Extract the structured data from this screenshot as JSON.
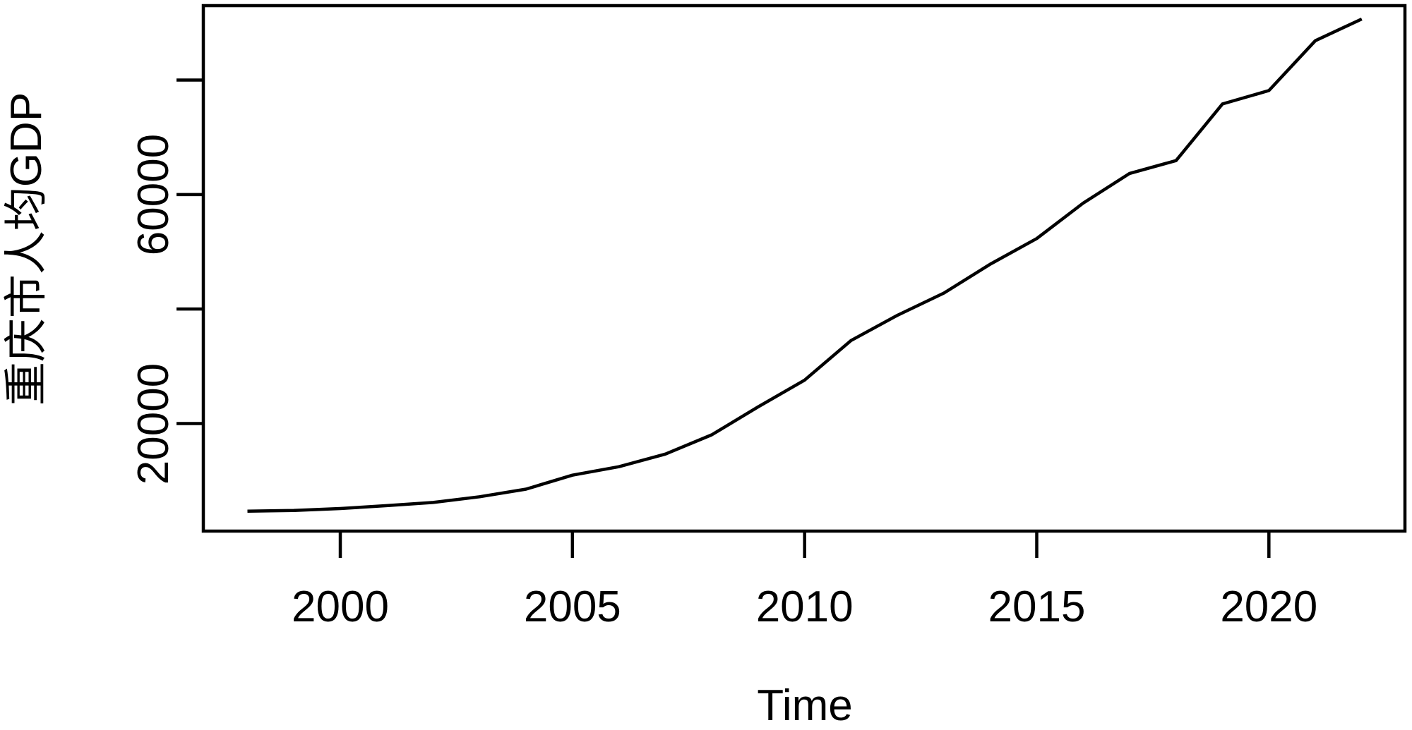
{
  "chart_data": {
    "type": "line",
    "title": "",
    "xlabel": "Time",
    "ylabel": "重庆市人均GDP",
    "series_name": "重庆市人均GDP",
    "x": [
      1998,
      1999,
      2000,
      2001,
      2002,
      2003,
      2004,
      2005,
      2006,
      2007,
      2008,
      2009,
      2010,
      2011,
      2012,
      2013,
      2014,
      2015,
      2016,
      2017,
      2018,
      2019,
      2020,
      2021,
      2022
    ],
    "values": [
      4684,
      4826,
      5157,
      5655,
      6217,
      7209,
      8540,
      10982,
      12457,
      14660,
      18025,
      22920,
      27596,
      34500,
      38914,
      42795,
      47850,
      52321,
      58502,
      63689,
      65933,
      75828,
      78170,
      86879,
      90663
    ],
    "xlim": [
      1997.05,
      2022.93
    ],
    "ylim": [
      1212,
      93000
    ],
    "x_ticks": [
      2000,
      2005,
      2010,
      2015,
      2020
    ],
    "x_tick_labels": [
      "2000",
      "2005",
      "2010",
      "2015",
      "2020"
    ],
    "y_ticks": [
      20000,
      40000,
      60000,
      80000
    ],
    "y_tick_labels": [
      "20000",
      "",
      "60000",
      ""
    ],
    "grid": false,
    "legend_position": "none",
    "line_color": "#000000",
    "axis_color": "#000000",
    "background_color": "#ffffff"
  }
}
